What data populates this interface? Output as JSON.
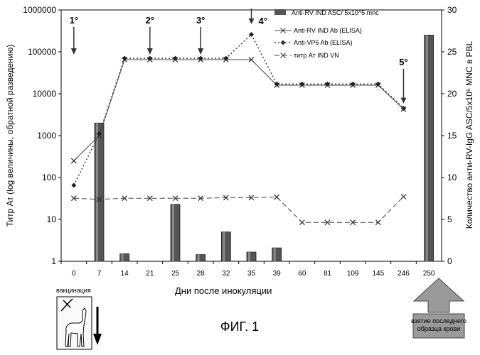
{
  "chart_data": {
    "type": "bar+line",
    "x_axis": {
      "label": "Дни после инокуляции",
      "categories": [
        "0",
        "7",
        "14",
        "21",
        "25",
        "28",
        "32",
        "35",
        "39",
        "60",
        "81",
        "109",
        "145",
        "246",
        "250"
      ]
    },
    "y_left": {
      "label": "Титр Ат (log величины, обратной разведению)",
      "scale": "log",
      "range": [
        1,
        1000000
      ],
      "ticks": [
        "1",
        "10",
        "100",
        "1000",
        "10000",
        "100000",
        "1000000"
      ]
    },
    "y_right": {
      "label": "Количество анти-RV-IgG ASC/5x10⁵ MNC в PBL",
      "scale": "linear",
      "range": [
        0,
        30
      ],
      "ticks": [
        "0",
        "5",
        "10",
        "15",
        "20",
        "25",
        "30"
      ]
    },
    "series": [
      {
        "name": "Anti-RV IND ASC/ 5x10^5 mnc",
        "type": "bar",
        "axis": "right",
        "color": "#555555",
        "values": [
          null,
          16.5,
          0.9,
          null,
          6.8,
          0.8,
          3.5,
          1.1,
          1.6,
          null,
          null,
          null,
          null,
          null,
          27
        ]
      },
      {
        "name": "Anti-RV IND Ab (ELISA)",
        "type": "line",
        "axis": "left",
        "style": "solid",
        "marker": "x",
        "values": [
          250,
          1000,
          65000,
          65000,
          65000,
          65000,
          65000,
          65000,
          16000,
          16000,
          16000,
          16000,
          16000,
          4300,
          null
        ]
      },
      {
        "name": "Anti-VP6 Ab (ELISA)",
        "type": "line",
        "axis": "left",
        "style": "dotted",
        "marker": "diamond",
        "values": [
          65,
          1100,
          70000,
          70000,
          70000,
          70000,
          70000,
          260000,
          17000,
          17000,
          17000,
          17000,
          17000,
          4500,
          null
        ]
      },
      {
        "name": "титр Ат IND VN",
        "type": "line",
        "axis": "left",
        "style": "dashed",
        "marker": "x",
        "values": [
          32,
          30,
          32,
          32,
          32,
          32,
          33,
          33,
          34,
          8.5,
          8.5,
          8.5,
          8.5,
          35,
          null
        ]
      }
    ],
    "annotations": [
      {
        "label": "1°",
        "x": "0"
      },
      {
        "label": "2°",
        "x": "21"
      },
      {
        "label": "3°",
        "x": "28"
      },
      {
        "label": "4°",
        "x": "35"
      },
      {
        "label": "5°",
        "x": "246"
      }
    ],
    "legend_position": "top-right"
  },
  "labels": {
    "vaccination": "вакцинация",
    "blood_sample": "взятие последнего образца крови",
    "figure_caption": "ФИГ. 1"
  },
  "colors": {
    "bar": "#555555",
    "line": "#444444",
    "arrow": "#333333"
  }
}
